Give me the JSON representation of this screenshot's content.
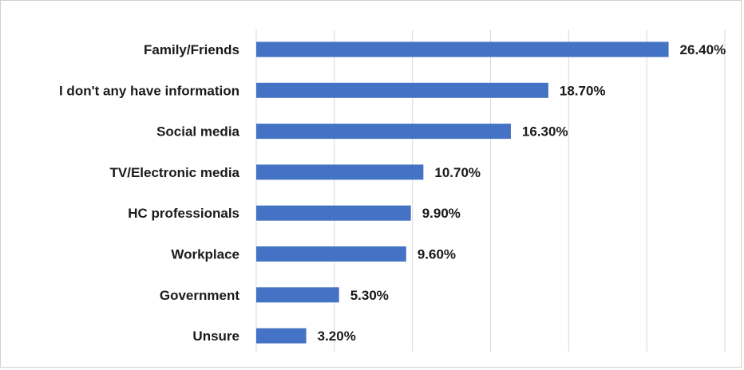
{
  "chart_data": {
    "type": "bar",
    "orientation": "horizontal",
    "title": "",
    "xlabel": "",
    "ylabel": "",
    "categories": [
      "Family/Friends",
      "I don't any have information",
      "Social media",
      "TV/Electronic media",
      "HC professionals",
      "Workplace",
      "Government",
      "Unsure"
    ],
    "values": [
      26.4,
      18.7,
      16.3,
      10.7,
      9.9,
      9.6,
      5.3,
      3.2
    ],
    "value_labels": [
      "26.40%",
      "18.70%",
      "16.30%",
      "10.70%",
      "9.90%",
      "9.60%",
      "5.30%",
      "3.20%"
    ],
    "xlim": [
      0,
      30
    ],
    "gridlines_at": [
      0,
      5,
      10,
      15,
      20,
      25,
      30
    ],
    "grid": true,
    "legend": "none",
    "bar_color": "#4472c4",
    "grid_color": "#d9d9d9"
  }
}
